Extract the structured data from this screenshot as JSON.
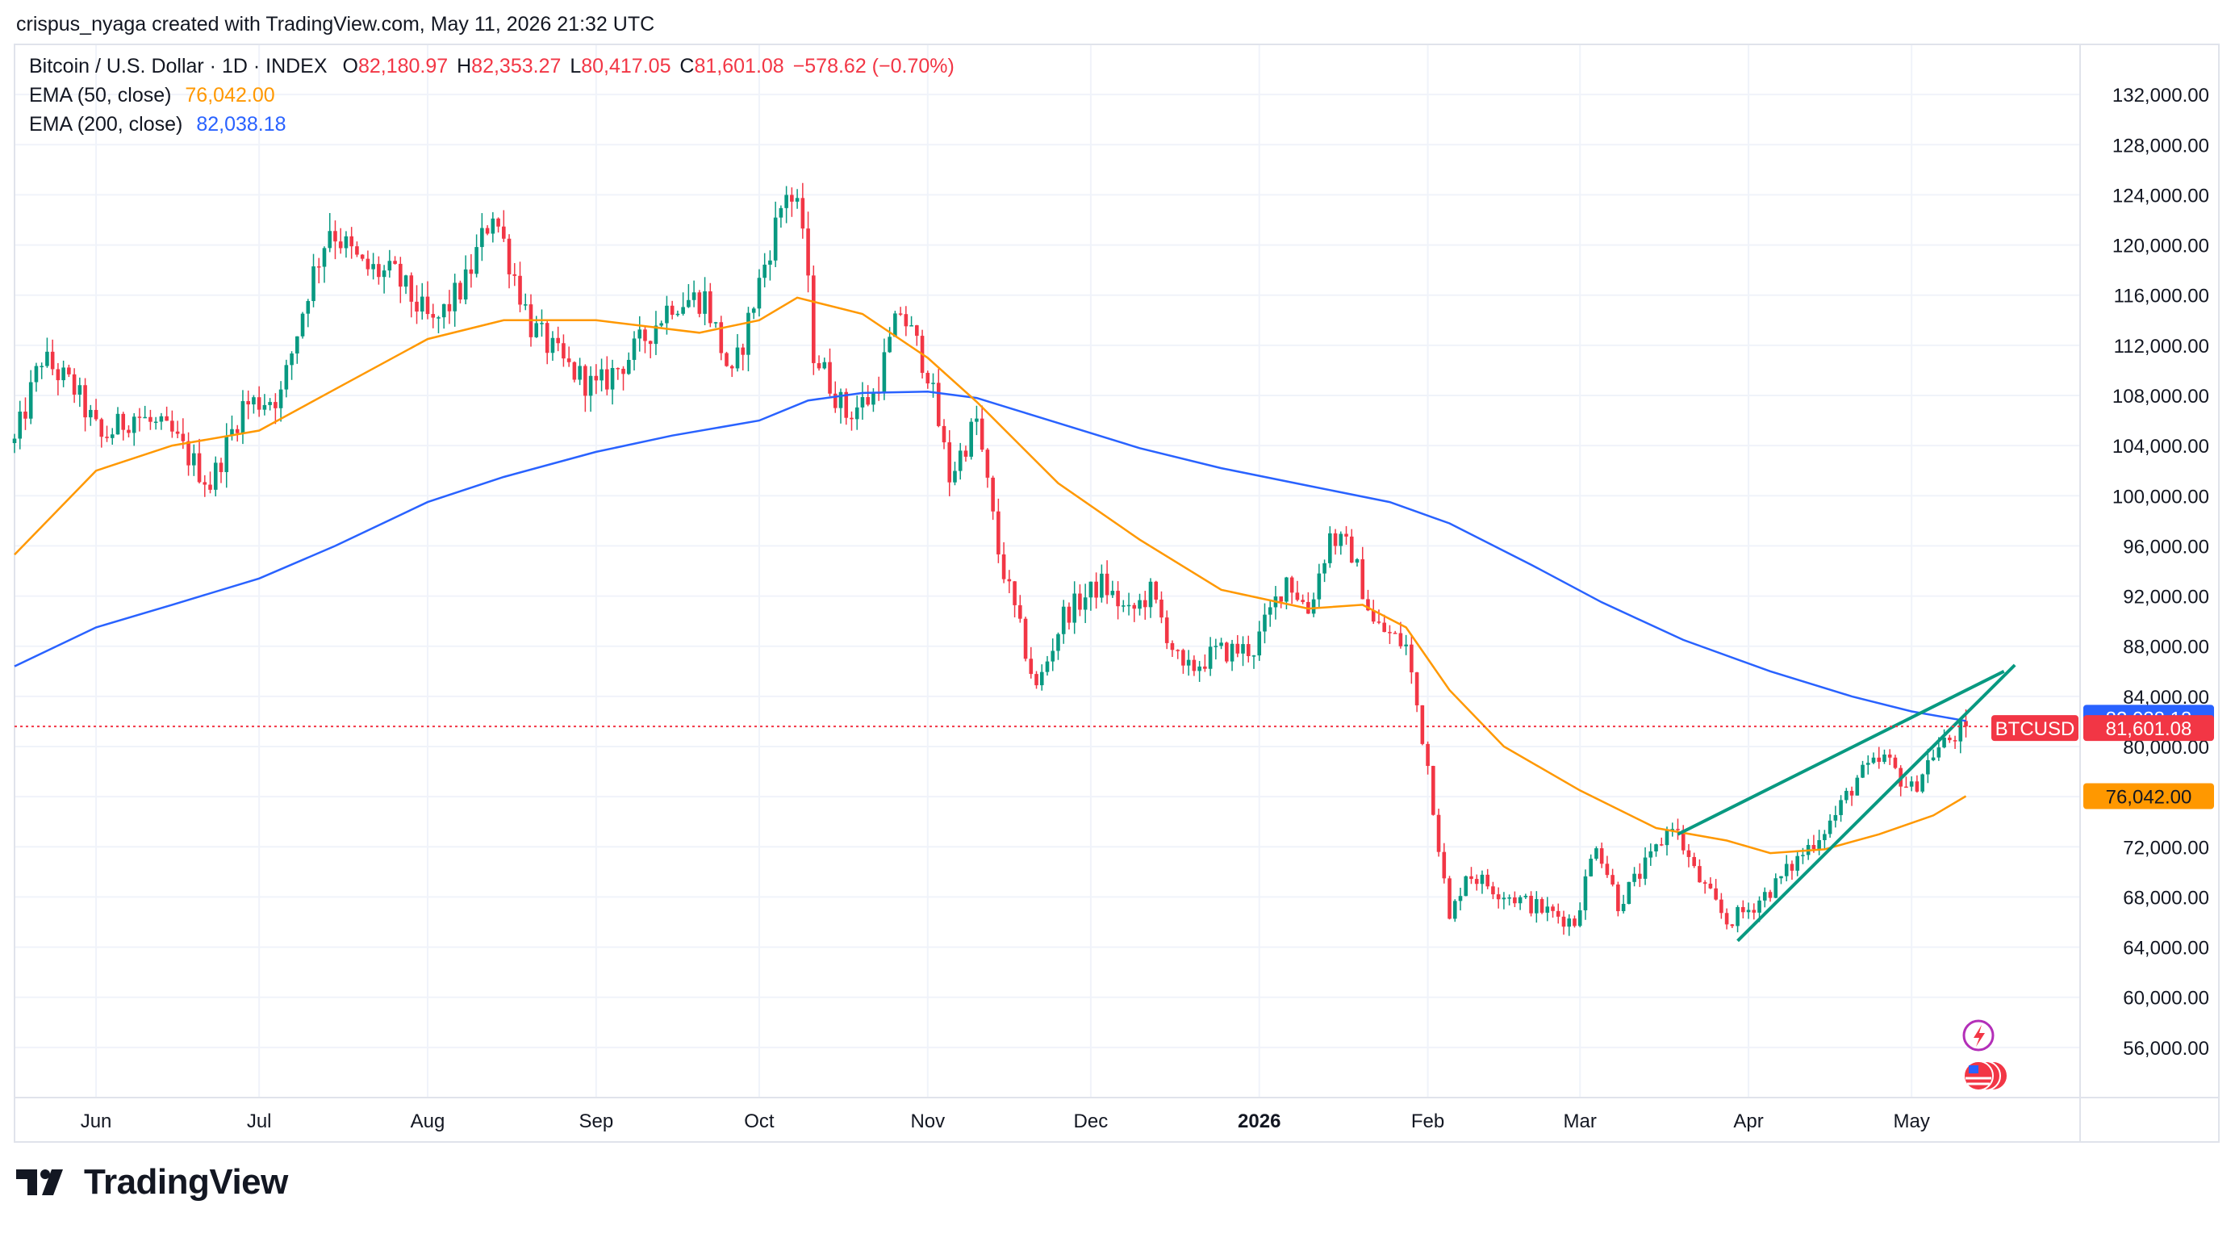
{
  "header": {
    "attribution": "crispus_nyaga created with TradingView.com, May 11, 2026 21:32 UTC"
  },
  "legend": {
    "symbol": "Bitcoin / U.S. Dollar · 1D · INDEX",
    "o_label": "O",
    "o_value": "82,180.97",
    "h_label": "H",
    "h_value": "82,353.27",
    "l_label": "L",
    "l_value": "80,417.05",
    "c_label": "C",
    "c_value": "81,601.08",
    "change": "−578.62 (−0.70%)",
    "ema50_label": "EMA (50, close)",
    "ema50_value": "76,042.00",
    "ema200_label": "EMA (200, close)",
    "ema200_value": "82,038.18"
  },
  "footer": {
    "brand": "TradingView"
  },
  "colors": {
    "up": "#089981",
    "down": "#f23645",
    "ema50": "#ff9800",
    "ema200": "#2962ff",
    "channel": "#089981",
    "grid": "#f0f3fa",
    "text": "#131722"
  },
  "chart_data": {
    "type": "candlestick",
    "title": "Bitcoin / U.S. Dollar · 1D · INDEX",
    "symbol": "BTCUSD",
    "interval": "1D",
    "ylim": [
      52000,
      136000
    ],
    "y_ticks": [
      "132,000.00",
      "128,000.00",
      "124,000.00",
      "120,000.00",
      "116,000.00",
      "112,000.00",
      "108,000.00",
      "104,000.00",
      "100,000.00",
      "96,000.00",
      "92,000.00",
      "88,000.00",
      "84,000.00",
      "80,000.00",
      "76,000.00",
      "72,000.00",
      "68,000.00",
      "64,000.00",
      "60,000.00",
      "56,000.00"
    ],
    "x_ticks": [
      "Jun",
      "Jul",
      "Aug",
      "Sep",
      "Oct",
      "Nov",
      "Dec",
      "2026",
      "Feb",
      "Mar",
      "Apr",
      "May"
    ],
    "x_range": [
      "2025-05-17",
      "2026-06-01"
    ],
    "price_path": [
      [
        "2025-05-17",
        104200
      ],
      [
        "2025-05-22",
        111000
      ],
      [
        "2025-05-28",
        108500
      ],
      [
        "2025-06-02",
        104500
      ],
      [
        "2025-06-08",
        106500
      ],
      [
        "2025-06-15",
        104800
      ],
      [
        "2025-06-22",
        100900
      ],
      [
        "2025-06-28",
        107200
      ],
      [
        "2025-07-05",
        108000
      ],
      [
        "2025-07-10",
        116500
      ],
      [
        "2025-07-14",
        121500
      ],
      [
        "2025-07-20",
        118200
      ],
      [
        "2025-07-26",
        117500
      ],
      [
        "2025-08-02",
        113500
      ],
      [
        "2025-08-08",
        117000
      ],
      [
        "2025-08-13",
        122800
      ],
      [
        "2025-08-20",
        113600
      ],
      [
        "2025-08-26",
        110500
      ],
      [
        "2025-09-01",
        108500
      ],
      [
        "2025-09-08",
        111500
      ],
      [
        "2025-09-15",
        115500
      ],
      [
        "2025-09-21",
        115800
      ],
      [
        "2025-09-26",
        109200
      ],
      [
        "2025-10-01",
        117000
      ],
      [
        "2025-10-06",
        124500
      ],
      [
        "2025-10-09",
        121500
      ],
      [
        "2025-10-11",
        111500
      ],
      [
        "2025-10-17",
        106500
      ],
      [
        "2025-10-22",
        108000
      ],
      [
        "2025-10-27",
        114800
      ],
      [
        "2025-11-01",
        110000
      ],
      [
        "2025-11-05",
        101500
      ],
      [
        "2025-11-10",
        106000
      ],
      [
        "2025-11-14",
        95500
      ],
      [
        "2025-11-21",
        84500
      ],
      [
        "2025-11-26",
        90500
      ],
      [
        "2025-12-03",
        93000
      ],
      [
        "2025-12-08",
        90500
      ],
      [
        "2025-12-12",
        92300
      ],
      [
        "2025-12-18",
        85800
      ],
      [
        "2025-12-24",
        87500
      ],
      [
        "2025-12-31",
        87800
      ],
      [
        "2026-01-06",
        93500
      ],
      [
        "2026-01-10",
        90800
      ],
      [
        "2026-01-14",
        96800
      ],
      [
        "2026-01-18",
        95500
      ],
      [
        "2026-01-22",
        89800
      ],
      [
        "2026-01-28",
        88000
      ],
      [
        "2026-02-01",
        78500
      ],
      [
        "2026-02-05",
        66000
      ],
      [
        "2026-02-08",
        70000
      ],
      [
        "2026-02-14",
        68500
      ],
      [
        "2026-02-22",
        67000
      ],
      [
        "2026-02-28",
        66000
      ],
      [
        "2026-03-04",
        72500
      ],
      [
        "2026-03-08",
        67500
      ],
      [
        "2026-03-14",
        71000
      ],
      [
        "2026-03-18",
        74000
      ],
      [
        "2026-03-22",
        70000
      ],
      [
        "2026-03-28",
        66000
      ],
      [
        "2026-04-01",
        67000
      ],
      [
        "2026-04-06",
        69000
      ],
      [
        "2026-04-12",
        72000
      ],
      [
        "2026-04-17",
        74500
      ],
      [
        "2026-04-21",
        77500
      ],
      [
        "2026-04-26",
        79000
      ],
      [
        "2026-05-01",
        76500
      ],
      [
        "2026-05-05",
        79500
      ],
      [
        "2026-05-11",
        81601
      ]
    ],
    "ema50_path": [
      [
        "2025-05-17",
        95300
      ],
      [
        "2025-06-01",
        102000
      ],
      [
        "2025-06-15",
        104000
      ],
      [
        "2025-07-01",
        105200
      ],
      [
        "2025-07-15",
        108500
      ],
      [
        "2025-08-01",
        112500
      ],
      [
        "2025-08-15",
        114000
      ],
      [
        "2025-09-01",
        114000
      ],
      [
        "2025-09-20",
        113000
      ],
      [
        "2025-10-01",
        114000
      ],
      [
        "2025-10-08",
        115800
      ],
      [
        "2025-10-20",
        114500
      ],
      [
        "2025-11-01",
        111000
      ],
      [
        "2025-11-10",
        107500
      ],
      [
        "2025-11-25",
        101000
      ],
      [
        "2025-12-10",
        96500
      ],
      [
        "2025-12-25",
        92500
      ],
      [
        "2026-01-10",
        91000
      ],
      [
        "2026-01-20",
        91300
      ],
      [
        "2026-01-28",
        89500
      ],
      [
        "2026-02-05",
        84500
      ],
      [
        "2026-02-15",
        80000
      ],
      [
        "2026-03-01",
        76500
      ],
      [
        "2026-03-15",
        73500
      ],
      [
        "2026-03-28",
        72500
      ],
      [
        "2026-04-05",
        71500
      ],
      [
        "2026-04-15",
        71800
      ],
      [
        "2026-04-25",
        73000
      ],
      [
        "2026-05-05",
        74500
      ],
      [
        "2026-05-11",
        76042
      ]
    ],
    "ema200_path": [
      [
        "2025-05-17",
        86400
      ],
      [
        "2025-06-01",
        89500
      ],
      [
        "2025-06-15",
        91300
      ],
      [
        "2025-07-01",
        93400
      ],
      [
        "2025-07-15",
        96000
      ],
      [
        "2025-08-01",
        99500
      ],
      [
        "2025-08-15",
        101500
      ],
      [
        "2025-09-01",
        103500
      ],
      [
        "2025-09-15",
        104800
      ],
      [
        "2025-10-01",
        106000
      ],
      [
        "2025-10-10",
        107600
      ],
      [
        "2025-10-20",
        108200
      ],
      [
        "2025-11-01",
        108300
      ],
      [
        "2025-11-10",
        107800
      ],
      [
        "2025-11-25",
        105800
      ],
      [
        "2025-12-10",
        103800
      ],
      [
        "2025-12-25",
        102200
      ],
      [
        "2026-01-10",
        100800
      ],
      [
        "2026-01-25",
        99500
      ],
      [
        "2026-02-05",
        97800
      ],
      [
        "2026-02-20",
        94500
      ],
      [
        "2026-03-05",
        91500
      ],
      [
        "2026-03-20",
        88500
      ],
      [
        "2026-04-05",
        86000
      ],
      [
        "2026-04-20",
        84000
      ],
      [
        "2026-05-01",
        82800
      ],
      [
        "2026-05-11",
        82038
      ]
    ],
    "channel_lines": [
      {
        "name": "upper",
        "from": [
          "2026-03-19",
          73000
        ],
        "to": [
          "2026-05-18",
          86000
        ]
      },
      {
        "name": "lower",
        "from": [
          "2026-03-30",
          64500
        ],
        "to": [
          "2026-05-20",
          86500
        ]
      }
    ],
    "last_price": "81,601.08",
    "last_price_value": 81601.08,
    "price_tag": "BTCUSD",
    "ema50_tag": "76,042.00",
    "ema50_tag_value": 76042,
    "ema200_tag": "82,038.18",
    "ema200_tag_value": 82038.18,
    "grid": true,
    "legend_position": "top-left"
  }
}
